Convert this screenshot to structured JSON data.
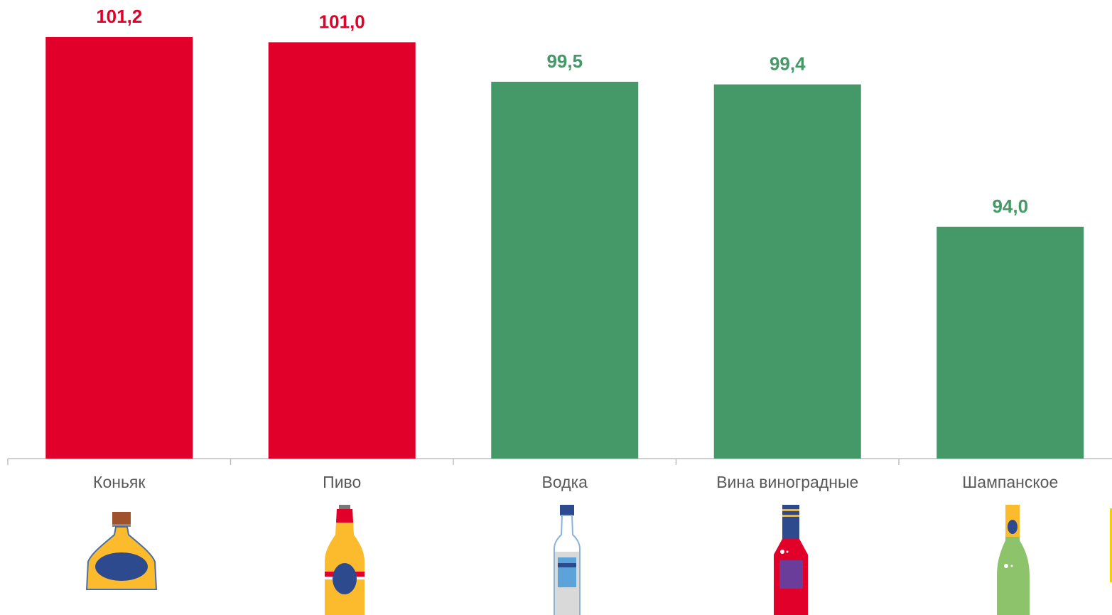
{
  "chart_data": {
    "type": "bar",
    "categories": [
      "Коньяк",
      "Пиво",
      "Водка",
      "Вина виноградные",
      "Шампанское"
    ],
    "values": [
      101.2,
      101.0,
      99.5,
      99.4,
      94.0
    ],
    "value_labels": [
      "101,2",
      "101,0",
      "99,5",
      "99,4",
      "94,0"
    ],
    "bar_colors": [
      "#e1002a",
      "#e1002a",
      "#459868",
      "#459868",
      "#459868"
    ],
    "ylim": [
      85.2,
      101.2
    ],
    "title": "",
    "xlabel": "",
    "ylabel": "",
    "grid": false,
    "legend": "none",
    "icons": [
      "cognac-bottle-icon",
      "beer-bottle-icon",
      "vodka-bottle-icon",
      "wine-bottle-icon",
      "champagne-bottle-icon"
    ]
  }
}
